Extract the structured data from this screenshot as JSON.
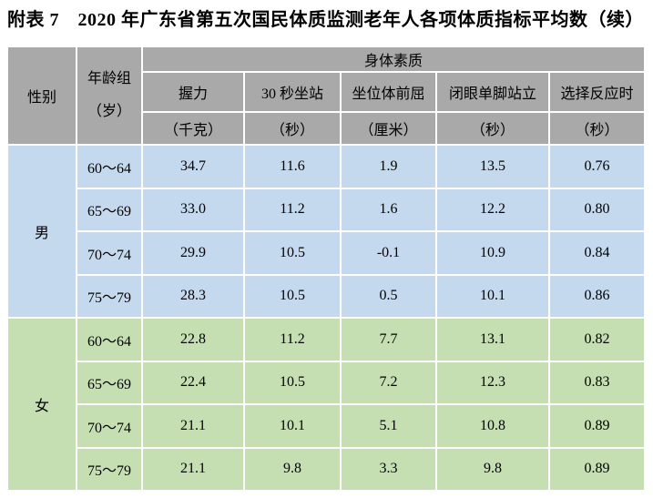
{
  "title": "附表 7　2020 年广东省第五次国民体质监测老年人各项体质指标平均数（续）",
  "table": {
    "gender_header": "性别",
    "age_header_line1": "年龄组",
    "age_header_line2": "（岁）",
    "group_header": "身体素质",
    "columns": [
      {
        "name": "握力",
        "unit": "（千克）"
      },
      {
        "name": "30 秒坐站",
        "unit": "（秒）"
      },
      {
        "name": "坐位体前屈",
        "unit": "（厘米）"
      },
      {
        "name": "闭眼单脚站立",
        "unit": "（秒）"
      },
      {
        "name": "选择反应时",
        "unit": "（秒）"
      }
    ],
    "groups": [
      {
        "gender": "男",
        "rows": [
          {
            "age": "60～64",
            "values": [
              "34.7",
              "11.6",
              "1.9",
              "13.5",
              "0.76"
            ]
          },
          {
            "age": "65～69",
            "values": [
              "33.0",
              "11.2",
              "1.6",
              "12.2",
              "0.80"
            ]
          },
          {
            "age": "70～74",
            "values": [
              "29.9",
              "10.5",
              "-0.1",
              "10.9",
              "0.84"
            ]
          },
          {
            "age": "75～79",
            "values": [
              "28.3",
              "10.5",
              "0.5",
              "10.1",
              "0.86"
            ]
          }
        ]
      },
      {
        "gender": "女",
        "rows": [
          {
            "age": "60～64",
            "values": [
              "22.8",
              "11.2",
              "7.7",
              "13.1",
              "0.82"
            ]
          },
          {
            "age": "65～69",
            "values": [
              "22.4",
              "10.5",
              "7.2",
              "12.3",
              "0.83"
            ]
          },
          {
            "age": "70～74",
            "values": [
              "21.1",
              "10.1",
              "5.1",
              "10.8",
              "0.89"
            ]
          },
          {
            "age": "75～79",
            "values": [
              "21.1",
              "9.8",
              "3.3",
              "9.8",
              "0.89"
            ]
          }
        ]
      }
    ]
  },
  "colors": {
    "header_bg": "#a9a9a9",
    "male_bg": "#c5d9ee",
    "female_bg": "#c5dfb3",
    "cell_border": "#ffffff",
    "text": "#000000"
  }
}
